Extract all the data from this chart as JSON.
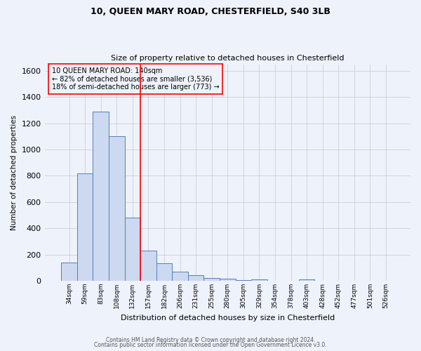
{
  "title": "10, QUEEN MARY ROAD, CHESTERFIELD, S40 3LB",
  "subtitle": "Size of property relative to detached houses in Chesterfield",
  "xlabel": "Distribution of detached houses by size in Chesterfield",
  "ylabel": "Number of detached properties",
  "footnote1": "Contains HM Land Registry data © Crown copyright and database right 2024.",
  "footnote2": "Contains public sector information licensed under the Open Government Licence v3.0.",
  "bar_labels": [
    "34sqm",
    "59sqm",
    "83sqm",
    "108sqm",
    "132sqm",
    "157sqm",
    "182sqm",
    "206sqm",
    "231sqm",
    "255sqm",
    "280sqm",
    "305sqm",
    "329sqm",
    "354sqm",
    "378sqm",
    "403sqm",
    "428sqm",
    "452sqm",
    "477sqm",
    "501sqm",
    "526sqm"
  ],
  "bar_values": [
    140,
    820,
    1290,
    1100,
    480,
    230,
    135,
    70,
    42,
    22,
    14,
    7,
    12,
    0,
    0,
    10,
    0,
    0,
    0,
    0,
    0
  ],
  "bar_color": "#ccd9f0",
  "bar_edge_color": "#5080c0",
  "ylim": [
    0,
    1650
  ],
  "yticks": [
    0,
    200,
    400,
    600,
    800,
    1000,
    1200,
    1400,
    1600
  ],
  "red_line_x": 4.5,
  "annotation_title": "10 QUEEN MARY ROAD: 140sqm",
  "annotation_line1": "← 82% of detached houses are smaller (3,536)",
  "annotation_line2": "18% of semi-detached houses are larger (773) →",
  "bg_color": "#eef2fb",
  "grid_color": "#c8c8c8"
}
